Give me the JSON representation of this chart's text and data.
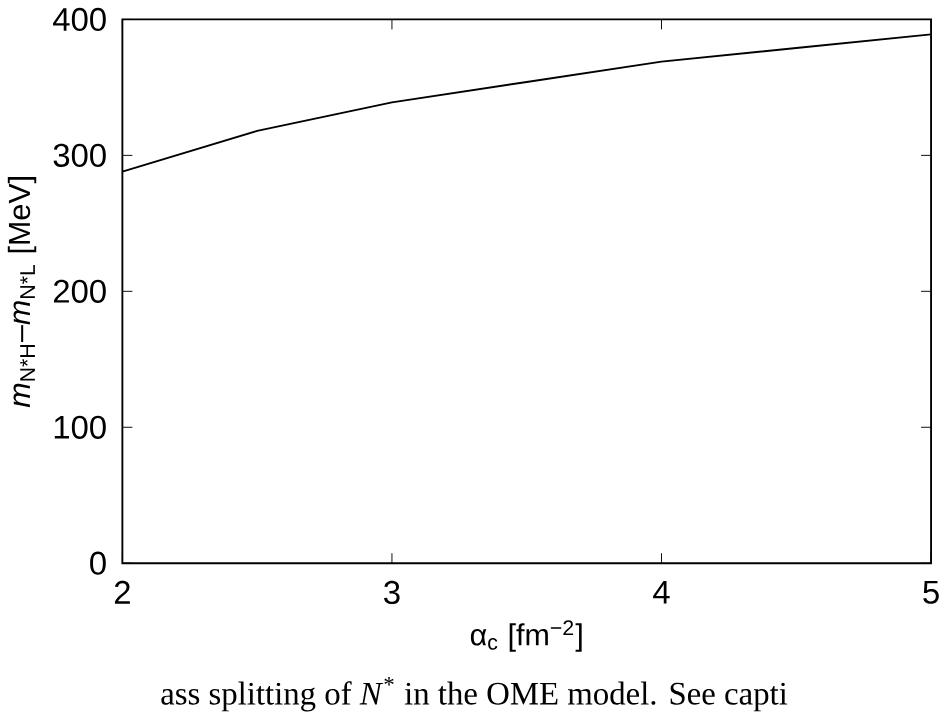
{
  "chart_data": {
    "type": "line",
    "xlabel": "α$_{c}$ [fm$^{−2}$]",
    "ylabel": "*m*$_{N*H}$–*m*$_{N*L}$ [MeV]",
    "annotations": [
      "ass splitting of *N*$^{*}$ in the OME model. See capti"
    ],
    "x": [
      2,
      2.5,
      3,
      3.5,
      4,
      4.5,
      5
    ],
    "series": [
      {
        "color": "#000000",
        "values": [
          288,
          318,
          339,
          354,
          369,
          379,
          389
        ]
      }
    ],
    "xlim": [
      2,
      5
    ],
    "xticks": [
      2,
      3,
      4,
      5
    ],
    "ylim": [
      0,
      400
    ],
    "yticks": [
      0,
      100,
      200,
      300,
      400
    ],
    "grid": false,
    "marker": "none",
    "line_style": "solid"
  }
}
